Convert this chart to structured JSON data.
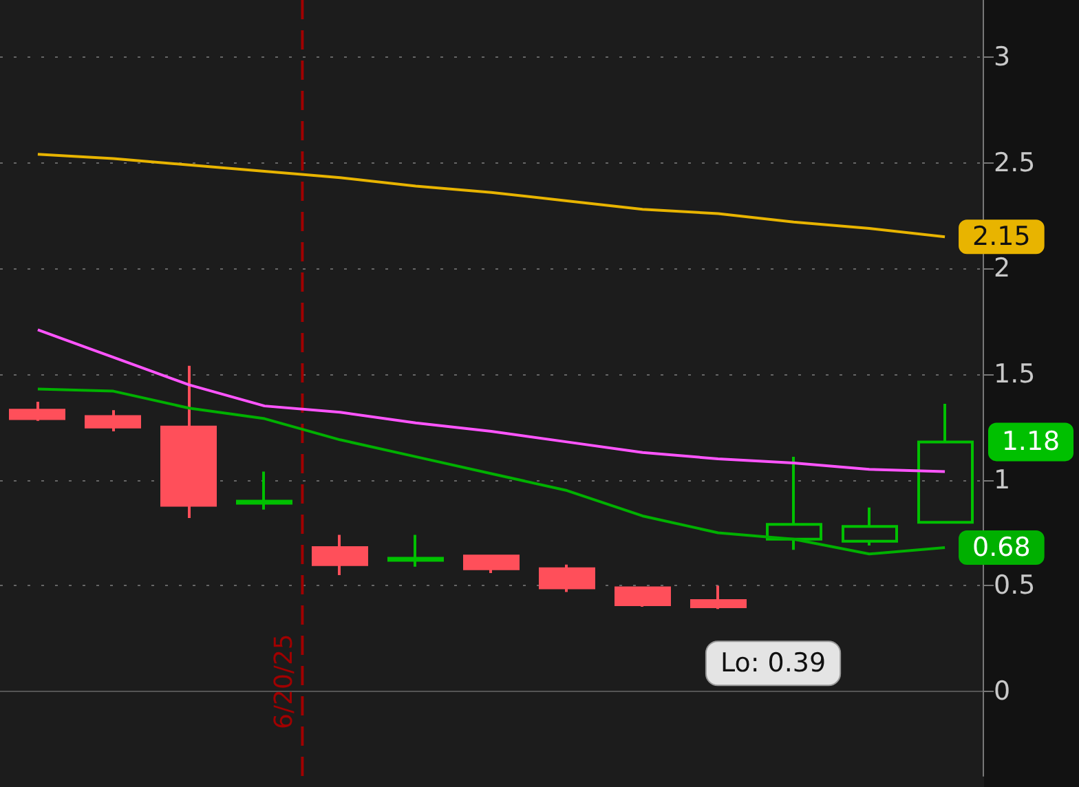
{
  "chart_data": {
    "type": "candlestick",
    "categories": [
      null,
      null,
      null,
      null,
      null,
      null,
      null,
      null,
      null,
      null,
      null,
      null,
      null
    ],
    "ylim": [
      -0.4,
      3.27
    ],
    "yticks": [
      0,
      0.5,
      1,
      1.5,
      2,
      2.5,
      3
    ],
    "grid": "y",
    "series": [
      {
        "type": "line",
        "color": "#e8b400",
        "values": [
          2.54,
          2.52,
          2.49,
          2.46,
          2.43,
          2.39,
          2.36,
          2.32,
          2.28,
          2.26,
          2.22,
          2.19,
          2.15
        ],
        "value_labels": [
          null,
          null,
          null,
          null,
          null,
          null,
          null,
          null,
          null,
          null,
          null,
          null,
          "2.15"
        ]
      },
      {
        "type": "line",
        "color": "#ff55ff",
        "values": [
          1.71,
          1.58,
          1.45,
          1.35,
          1.32,
          1.27,
          1.23,
          1.18,
          1.13,
          1.1,
          1.08,
          1.05,
          1.04
        ]
      },
      {
        "type": "line",
        "color": "#00b000",
        "values": [
          1.43,
          1.42,
          1.34,
          1.29,
          1.19,
          1.11,
          1.03,
          0.95,
          0.83,
          0.75,
          0.72,
          0.65,
          0.68
        ],
        "value_labels": [
          null,
          null,
          null,
          null,
          null,
          null,
          null,
          null,
          null,
          null,
          null,
          null,
          "0.68"
        ]
      },
      {
        "ohlc": [
          [
            1.33,
            1.37,
            1.28,
            1.29
          ],
          [
            1.3,
            1.33,
            1.23,
            1.25
          ],
          [
            1.25,
            1.54,
            0.82,
            0.88
          ],
          [
            0.89,
            1.04,
            0.86,
            0.9
          ],
          [
            0.68,
            0.74,
            0.55,
            0.6
          ],
          [
            0.62,
            0.74,
            0.59,
            0.63
          ],
          [
            0.64,
            0.64,
            0.56,
            0.58
          ],
          [
            0.58,
            0.6,
            0.47,
            0.49
          ],
          [
            0.49,
            0.49,
            0.4,
            0.41
          ],
          [
            0.43,
            0.5,
            0.39,
            0.4
          ],
          [
            0.72,
            1.11,
            0.67,
            0.79
          ],
          [
            0.71,
            0.87,
            0.69,
            0.78
          ],
          [
            0.8,
            1.36,
            0.8,
            1.18
          ]
        ],
        "colors": [
          "#ff4f5a",
          "#ff4f5a",
          "#ff4f5a",
          "#00c000",
          "#ff4f5a",
          "#00c000",
          "#ff4f5a",
          "#ff4f5a",
          "#ff4f5a",
          "#ff4f5a",
          "#00c000",
          "#00c000",
          "#00c000"
        ],
        "value_labels": [
          null,
          null,
          null,
          null,
          null,
          null,
          null,
          null,
          null,
          null,
          null,
          null,
          "1.18"
        ]
      }
    ],
    "annotations": [
      "6/20/25",
      "Lo: 0.39"
    ]
  }
}
